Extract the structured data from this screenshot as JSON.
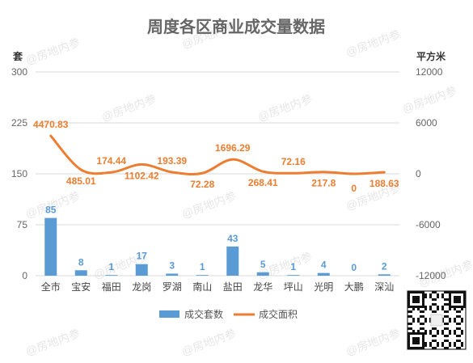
{
  "chart_data": {
    "type": "bar+line",
    "title": "周度各区商业成交量数据",
    "left_axis_unit": "套",
    "right_axis_unit": "平方米",
    "categories": [
      "全市",
      "宝安",
      "福田",
      "龙岗",
      "罗湖",
      "南山",
      "盐田",
      "龙华",
      "坪山",
      "光明",
      "大鹏",
      "深汕"
    ],
    "series": [
      {
        "name": "成交套数",
        "type": "bar",
        "axis": "left",
        "values": [
          85,
          8,
          1,
          17,
          3,
          1,
          43,
          5,
          1,
          4,
          0,
          2
        ],
        "labels": [
          "85",
          "8",
          "1",
          "17",
          "3",
          "1",
          "43",
          "5",
          "1",
          "4",
          "0",
          "2"
        ],
        "color": "#5b9bd5"
      },
      {
        "name": "成交面积",
        "type": "line",
        "axis": "right",
        "values": [
          4470.83,
          485.01,
          174.44,
          1102.42,
          193.39,
          72.28,
          1696.29,
          268.41,
          72.16,
          217.8,
          0,
          188.63
        ],
        "labels": [
          "4470.83",
          "485.01",
          "174.44",
          "1102.42",
          "193.39",
          "72.28",
          "1696.29",
          "268.41",
          "72.16",
          "217.8",
          "0",
          "188.63"
        ],
        "color": "#ed7d31"
      }
    ],
    "y_left": {
      "min": 0,
      "max": 300,
      "ticks": [
        0,
        75,
        150,
        225,
        300
      ],
      "tick_labels": [
        "0",
        "75",
        "150",
        "225",
        "300"
      ]
    },
    "y_right": {
      "min": -12000,
      "max": 12000,
      "ticks": [
        -12000,
        -6000,
        0,
        6000,
        12000
      ],
      "tick_labels": [
        "-12000",
        "-6000",
        "0",
        "6000",
        "12000"
      ]
    },
    "grid": true,
    "legend_position": "bottom"
  },
  "watermark_text": "@房地内参",
  "qr_code_icon": "qr-code-icon"
}
